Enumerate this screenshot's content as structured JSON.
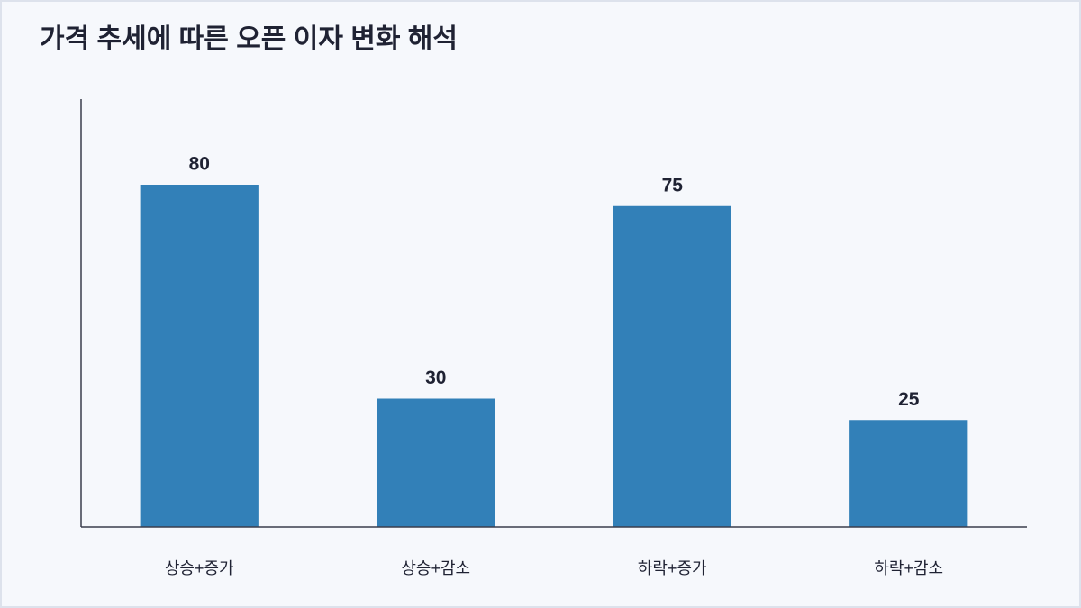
{
  "chart_data": {
    "type": "bar",
    "title": "가격 추세에 따른 오픈 이자 변화 해석",
    "categories": [
      "상승+증가",
      "상승+감소",
      "하락+증가",
      "하락+감소"
    ],
    "values": [
      80,
      30,
      75,
      25
    ],
    "color": "#3280b8",
    "ylim": [
      0,
      100
    ]
  }
}
